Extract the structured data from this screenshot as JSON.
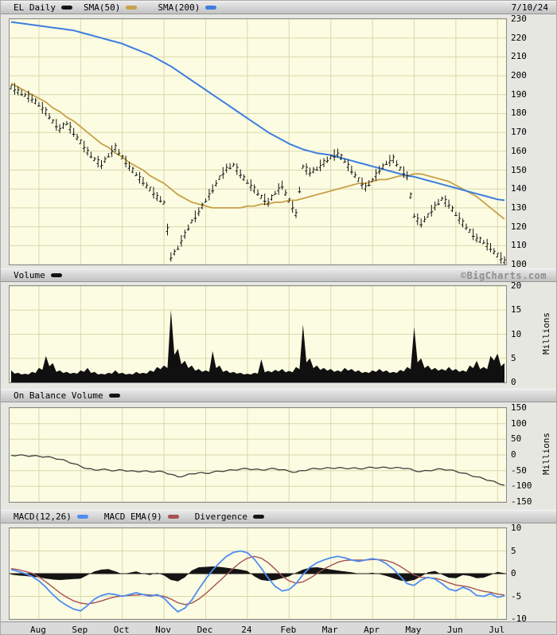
{
  "header": {
    "symbol_label": "EL Daily",
    "date": "7/10/24",
    "legend": [
      {
        "label": "SMA(50)",
        "color": "#c9a04a"
      },
      {
        "label": "SMA(200)",
        "color": "#3d7de0"
      }
    ]
  },
  "panel_headers": {
    "volume": "Volume",
    "obv": "On Balance Volume",
    "macd_items": [
      {
        "label": "MACD(12,26)",
        "color": "#4e8df2"
      },
      {
        "label": "MACD EMA(9)",
        "color": "#a45252"
      },
      {
        "label": "Divergence",
        "color": "#141414"
      }
    ]
  },
  "watermark": "©BigCharts.com",
  "y_axis_units": {
    "volume": "Millions",
    "obv": "Millions"
  },
  "x_axis": {
    "month_labels": [
      "Aug",
      "Sep",
      "Oct",
      "Nov",
      "Dec",
      "24",
      "Feb",
      "Mar",
      "Apr",
      "May",
      "Jun",
      "Jul"
    ],
    "month_boundary_indices": [
      4,
      10,
      16,
      22,
      28,
      34,
      40,
      46,
      52,
      58,
      64,
      70
    ]
  },
  "colors": {
    "plot_bg": "#fcfce2",
    "grid": "#d8d8ad",
    "bars": "#141414",
    "sma50": "#c9a04a",
    "sma200": "#3d7de0",
    "macd": "#4e8df2",
    "macd_ema": "#a45252",
    "obv": "#404040",
    "volume_fill": "#101010"
  },
  "chart_data": [
    {
      "name": "price",
      "type": "line",
      "title": "EL Daily OHLC with SMA(50) and SMA(200)",
      "ylim": [
        100,
        230
      ],
      "yticks": [
        230,
        220,
        210,
        200,
        190,
        180,
        170,
        160,
        150,
        140,
        130,
        120,
        110,
        100
      ],
      "bar_range_hint": 5,
      "series": [
        {
          "name": "EL close",
          "color": "#141414",
          "values": [
            194,
            192,
            190,
            188,
            185,
            181,
            176,
            172,
            175,
            170,
            165,
            160,
            156,
            153,
            158,
            162,
            157,
            152,
            148,
            144,
            140,
            136,
            133,
            104,
            109,
            116,
            123,
            128,
            134,
            140,
            146,
            151,
            153,
            148,
            144,
            140,
            136,
            133,
            138,
            142,
            134,
            127,
            152,
            149,
            151,
            154,
            157,
            159,
            155,
            150,
            145,
            141,
            145,
            150,
            154,
            156,
            151,
            147,
            126,
            122,
            126,
            131,
            135,
            132,
            127,
            122,
            118,
            114,
            112,
            109,
            105,
            102
          ]
        },
        {
          "name": "SMA(50)",
          "color": "#c9a04a",
          "values": [
            196,
            194,
            192,
            190,
            188,
            186,
            183,
            181,
            178,
            176,
            173,
            170,
            167,
            164,
            162,
            159,
            157,
            154,
            152,
            150,
            147,
            145,
            143,
            140,
            137,
            135,
            133,
            132,
            131,
            130,
            130,
            130,
            130,
            130,
            131,
            131,
            132,
            132,
            133,
            133,
            134,
            134,
            135,
            136,
            137,
            138,
            139,
            140,
            141,
            142,
            143,
            143,
            144,
            145,
            145,
            146,
            147,
            147,
            148,
            148,
            147,
            146,
            145,
            144,
            142,
            140,
            138,
            136,
            133,
            130,
            127,
            124
          ]
        },
        {
          "name": "SMA(200)",
          "color": "#3d7de0",
          "values": [
            228.5,
            228,
            227.5,
            227,
            226.5,
            226,
            225.5,
            225,
            224.5,
            224,
            223,
            222,
            221,
            220,
            219,
            218,
            217,
            215.5,
            214,
            212.5,
            211,
            209,
            207,
            205,
            202.5,
            200,
            197.5,
            195,
            192.5,
            190,
            187.5,
            185,
            182.5,
            180,
            177.5,
            175,
            172.5,
            170,
            168,
            166,
            164,
            162.5,
            161,
            160,
            159,
            158.5,
            158,
            157,
            156,
            155,
            154,
            153,
            152,
            151,
            150,
            149,
            148,
            147,
            146.5,
            145.5,
            144.5,
            143.5,
            142.5,
            141.5,
            140.5,
            139.5,
            138.5,
            137.5,
            136.5,
            135.5,
            134.5,
            134
          ]
        }
      ]
    },
    {
      "name": "volume",
      "type": "area",
      "title": "Volume",
      "ylabel": "Millions",
      "ylim": [
        0,
        20
      ],
      "yticks": [
        20,
        15,
        10,
        5,
        0
      ],
      "color": "#101010",
      "values": [
        2.5,
        2.0,
        1.8,
        2.2,
        3.0,
        5.5,
        4.0,
        2.5,
        2.2,
        2.0,
        2.5,
        3.0,
        2.2,
        1.8,
        2.0,
        2.5,
        2.0,
        1.8,
        2.2,
        2.0,
        2.5,
        3.2,
        3.5,
        15.0,
        7.0,
        4.5,
        3.5,
        2.8,
        2.5,
        6.5,
        3.5,
        2.5,
        2.2,
        2.0,
        1.8,
        2.0,
        4.8,
        2.4,
        2.6,
        2.8,
        2.4,
        3.2,
        12.0,
        5.0,
        3.5,
        3.0,
        2.8,
        2.5,
        3.0,
        2.8,
        2.5,
        2.2,
        2.5,
        2.8,
        2.5,
        2.2,
        2.6,
        3.2,
        11.5,
        5.0,
        3.5,
        3.0,
        2.8,
        3.2,
        2.8,
        2.5,
        3.5,
        4.5,
        3.2,
        5.5,
        6.0,
        4.0
      ]
    },
    {
      "name": "obv",
      "type": "line",
      "title": "On Balance Volume",
      "ylabel": "Millions",
      "ylim": [
        -150,
        150
      ],
      "yticks": [
        150,
        100,
        50,
        0,
        -50,
        -100,
        -150
      ],
      "color": "#404040",
      "values": [
        -1,
        -1,
        -2,
        -3,
        -4,
        -6,
        -9,
        -14,
        -20,
        -28,
        -36,
        -44,
        -48,
        -46,
        -48,
        -50,
        -48,
        -51,
        -53,
        -51,
        -54,
        -52,
        -55,
        -62,
        -70,
        -66,
        -60,
        -57,
        -59,
        -55,
        -52,
        -50,
        -48,
        -45,
        -44,
        -46,
        -48,
        -45,
        -44,
        -47,
        -52,
        -55,
        -50,
        -45,
        -44,
        -43,
        -42,
        -41,
        -43,
        -42,
        -44,
        -42,
        -40,
        -41,
        -40,
        -42,
        -41,
        -43,
        -50,
        -53,
        -50,
        -47,
        -45,
        -48,
        -52,
        -58,
        -64,
        -70,
        -76,
        -82,
        -90,
        -96
      ]
    },
    {
      "name": "macd",
      "type": "line",
      "title": "MACD(12,26) with MACD EMA(9) and Divergence",
      "ylim": [
        -10,
        10
      ],
      "yticks": [
        10,
        5,
        0,
        -5,
        -10
      ],
      "series": [
        {
          "name": "MACD(12,26)",
          "color": "#4e8df2",
          "values": [
            0.9,
            0.5,
            0.0,
            -0.6,
            -1.6,
            -3.0,
            -4.6,
            -6.0,
            -7.0,
            -7.8,
            -8.2,
            -7.0,
            -5.6,
            -4.8,
            -4.4,
            -4.6,
            -5.0,
            -4.6,
            -4.2,
            -4.6,
            -5.0,
            -4.6,
            -5.4,
            -7.0,
            -8.4,
            -7.6,
            -5.8,
            -3.4,
            -1.2,
            0.8,
            2.4,
            3.8,
            4.7,
            5.0,
            4.6,
            3.2,
            1.2,
            -1.0,
            -2.8,
            -3.8,
            -3.5,
            -2.2,
            -0.2,
            1.4,
            2.4,
            3.0,
            3.5,
            3.8,
            3.5,
            3.0,
            2.7,
            3.0,
            3.3,
            3.0,
            2.2,
            1.0,
            -0.6,
            -2.2,
            -2.6,
            -1.4,
            -0.8,
            -1.2,
            -2.2,
            -3.4,
            -3.8,
            -3.0,
            -3.6,
            -4.8,
            -5.0,
            -4.4,
            -5.2,
            -4.9
          ]
        },
        {
          "name": "MACD EMA(9)",
          "color": "#a45252",
          "values": [
            1.1,
            0.9,
            0.5,
            0.1,
            -0.7,
            -1.8,
            -3.0,
            -4.2,
            -5.2,
            -6.0,
            -6.5,
            -6.7,
            -6.4,
            -6.0,
            -5.5,
            -5.1,
            -4.9,
            -4.8,
            -4.7,
            -4.6,
            -4.7,
            -4.8,
            -5.0,
            -5.6,
            -6.4,
            -6.8,
            -6.5,
            -5.6,
            -4.4,
            -3.0,
            -1.6,
            -0.2,
            1.2,
            2.5,
            3.4,
            3.8,
            3.4,
            2.4,
            1.0,
            -0.5,
            -1.6,
            -2.1,
            -1.8,
            -1.0,
            0.0,
            1.0,
            1.8,
            2.5,
            2.9,
            3.0,
            3.0,
            3.0,
            3.1,
            3.1,
            2.9,
            2.4,
            1.6,
            0.6,
            -0.3,
            -0.8,
            -0.9,
            -1.0,
            -1.4,
            -2.0,
            -2.5,
            -2.7,
            -3.0,
            -3.5,
            -3.9,
            -4.1,
            -4.5,
            -4.7
          ]
        },
        {
          "name": "Divergence",
          "color": "#141414",
          "type": "bar",
          "values": [
            -0.2,
            -0.4,
            -0.5,
            -0.7,
            -0.8,
            -1.1,
            -1.3,
            -1.4,
            -1.3,
            -1.2,
            -1.1,
            -0.3,
            0.5,
            0.9,
            1.0,
            0.5,
            -0.1,
            0.2,
            0.5,
            0.0,
            -0.3,
            0.2,
            -0.4,
            -1.4,
            -1.7,
            -0.8,
            0.7,
            1.4,
            1.5,
            1.6,
            1.5,
            1.3,
            1.1,
            0.9,
            0.6,
            -0.6,
            -1.4,
            -1.6,
            -1.4,
            -1.0,
            -0.6,
            0.2,
            0.9,
            1.3,
            1.4,
            1.2,
            0.9,
            0.7,
            0.5,
            0.3,
            0.0,
            0.0,
            0.2,
            -0.1,
            -0.5,
            -1.0,
            -1.5,
            -1.7,
            -1.4,
            -0.6,
            0.3,
            0.6,
            -0.2,
            -0.9,
            -1.0,
            -0.3,
            -0.5,
            -1.0,
            -0.9,
            -0.3,
            0.4,
            0.1
          ]
        }
      ]
    }
  ]
}
